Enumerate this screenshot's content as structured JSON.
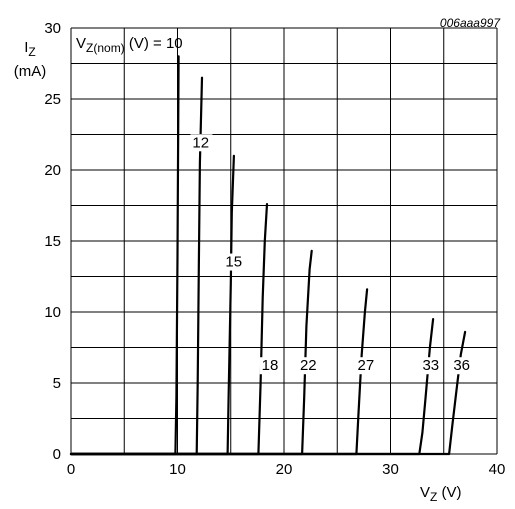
{
  "chart_data": {
    "type": "line",
    "figure_code": "006aaa997",
    "xlabel": {
      "main": "V",
      "sub": "Z",
      "unit": " (V)"
    },
    "ylabel": {
      "main": "I",
      "sub": "Z",
      "unit": "(mA)"
    },
    "xlim": [
      0,
      40
    ],
    "ylim": [
      0,
      30
    ],
    "x_ticks": [
      0,
      10,
      20,
      30,
      40
    ],
    "y_ticks": [
      0,
      5,
      10,
      15,
      20,
      25,
      30
    ],
    "x_minor_step": 5,
    "y_minor_step": 2.5,
    "grid": true,
    "series_title": {
      "main": "V",
      "sub": "Z(nom)",
      "rest": " (V) = 10"
    },
    "series": [
      {
        "name": "10",
        "points": [
          [
            0,
            0
          ],
          [
            9.8,
            0
          ],
          [
            9.9,
            4
          ],
          [
            10.0,
            14
          ],
          [
            10.1,
            28
          ]
        ]
      },
      {
        "name": "12",
        "points": [
          [
            0,
            0
          ],
          [
            11.8,
            0
          ],
          [
            11.9,
            5
          ],
          [
            12.0,
            13
          ],
          [
            12.1,
            20.5
          ],
          [
            12.3,
            26.5
          ]
        ]
      },
      {
        "name": "15",
        "points": [
          [
            0,
            0
          ],
          [
            14.7,
            0
          ],
          [
            14.8,
            4
          ],
          [
            15.0,
            12
          ],
          [
            15.1,
            17
          ],
          [
            15.3,
            21
          ]
        ]
      },
      {
        "name": "18",
        "points": [
          [
            0,
            0
          ],
          [
            17.6,
            0
          ],
          [
            17.8,
            5
          ],
          [
            18.0,
            11
          ],
          [
            18.2,
            15
          ],
          [
            18.4,
            17.6
          ]
        ]
      },
      {
        "name": "22",
        "points": [
          [
            0,
            0
          ],
          [
            21.7,
            0
          ],
          [
            21.9,
            4
          ],
          [
            22.1,
            9
          ],
          [
            22.4,
            13
          ],
          [
            22.6,
            14.3
          ]
        ]
      },
      {
        "name": "27",
        "points": [
          [
            0,
            0
          ],
          [
            26.8,
            0
          ],
          [
            27.0,
            3
          ],
          [
            27.3,
            7
          ],
          [
            27.6,
            10
          ],
          [
            27.8,
            11.6
          ]
        ]
      },
      {
        "name": "33",
        "points": [
          [
            0,
            0
          ],
          [
            32.7,
            0
          ],
          [
            33.0,
            1.5
          ],
          [
            33.3,
            4
          ],
          [
            33.7,
            7.5
          ],
          [
            34.0,
            9.5
          ]
        ]
      },
      {
        "name": "36",
        "points": [
          [
            0,
            0
          ],
          [
            35.5,
            0
          ],
          [
            35.8,
            2
          ],
          [
            36.2,
            4.5
          ],
          [
            36.6,
            7
          ],
          [
            37.0,
            8.6
          ]
        ]
      }
    ],
    "curve_labels": [
      {
        "text": "12",
        "x": 11.4,
        "y": 21.6
      },
      {
        "text": "15",
        "x": 14.5,
        "y": 13.2
      },
      {
        "text": "18",
        "x": 17.9,
        "y": 5.9
      },
      {
        "text": "22",
        "x": 21.5,
        "y": 5.9
      },
      {
        "text": "27",
        "x": 26.9,
        "y": 5.9
      },
      {
        "text": "33",
        "x": 33.0,
        "y": 5.9
      },
      {
        "text": "36",
        "x": 35.9,
        "y": 5.9
      }
    ]
  }
}
